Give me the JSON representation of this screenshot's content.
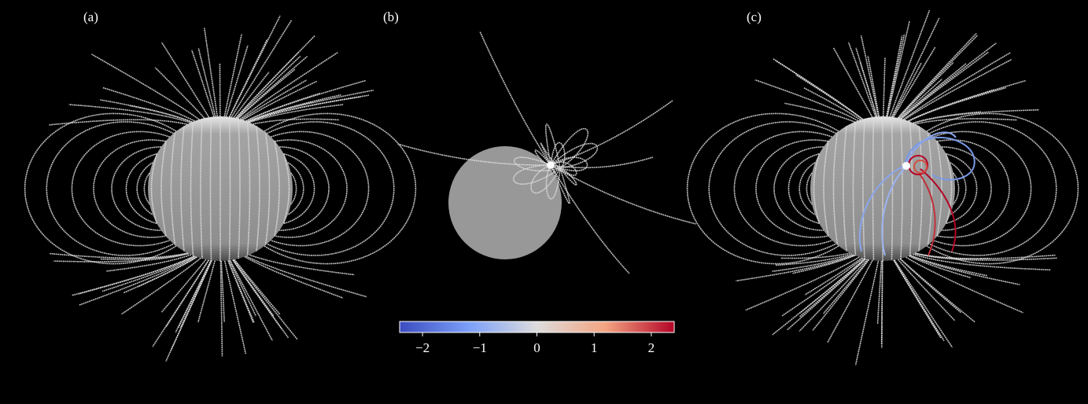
{
  "panels": [
    {
      "label": "(a)"
    },
    {
      "label": "(b)"
    },
    {
      "label": "(c)"
    }
  ],
  "colorbar": {
    "lim": [
      -2.4,
      2.4
    ],
    "ticks": [
      {
        "value": -2,
        "label": "−2"
      },
      {
        "value": -1,
        "label": "−1"
      },
      0,
      1,
      2
    ]
  }
}
